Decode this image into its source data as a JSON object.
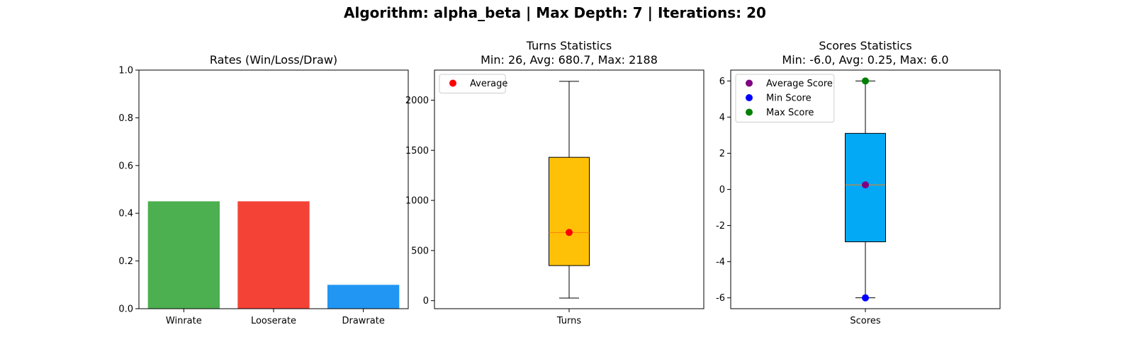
{
  "suptitle": "Algorithm: alpha_beta | Max Depth: 7 | Iterations: 20",
  "chart_data": [
    {
      "type": "bar",
      "title": "Rates (Win/Loss/Draw)",
      "categories": [
        "Winrate",
        "Looserate",
        "Drawrate"
      ],
      "values": [
        0.45,
        0.45,
        0.1
      ],
      "colors": [
        "#4caf50",
        "#f44336",
        "#2196f3"
      ],
      "ylim": [
        0,
        1.0
      ],
      "yticks": [
        "0.0",
        "0.2",
        "0.4",
        "0.6",
        "0.8",
        "1.0"
      ],
      "grid": false
    },
    {
      "type": "box",
      "title": "Turns Statistics",
      "subtitle": "Min: 26, Avg: 680.7, Max: 2188",
      "category": "Turns",
      "whisker_low": 26,
      "q1": 350,
      "median": 680,
      "q3": 1430,
      "whisker_high": 2188,
      "box_color": "#ffc107",
      "median_color": "#ff7f0e",
      "markers": [
        {
          "name": "Average",
          "value": 680.7,
          "color": "#ff0000"
        }
      ],
      "legend": [
        "Average"
      ],
      "legend_loc": "upper-left",
      "ylim": [
        -80,
        2300
      ],
      "yticks": [
        "0",
        "500",
        "1000",
        "1500",
        "2000"
      ],
      "grid": false
    },
    {
      "type": "box",
      "title": "Scores Statistics",
      "subtitle": "Min: -6.0, Avg: 0.25, Max: 6.0",
      "category": "Scores",
      "whisker_low": -6,
      "q1": -2.9,
      "median": 0.25,
      "q3": 3.1,
      "whisker_high": 6,
      "box_color": "#03a9f4",
      "median_color": "#ff7f0e",
      "markers": [
        {
          "name": "Average Score",
          "value": 0.25,
          "color": "#800080"
        },
        {
          "name": "Min Score",
          "value": -6.0,
          "color": "#0000ff"
        },
        {
          "name": "Max Score",
          "value": 6.0,
          "color": "#008000"
        }
      ],
      "legend": [
        "Average Score",
        "Min Score",
        "Max Score"
      ],
      "legend_loc": "upper-left",
      "ylim": [
        -6.6,
        6.6
      ],
      "yticks": [
        "-6",
        "-4",
        "-2",
        "0",
        "2",
        "4",
        "6"
      ],
      "grid": false
    }
  ]
}
